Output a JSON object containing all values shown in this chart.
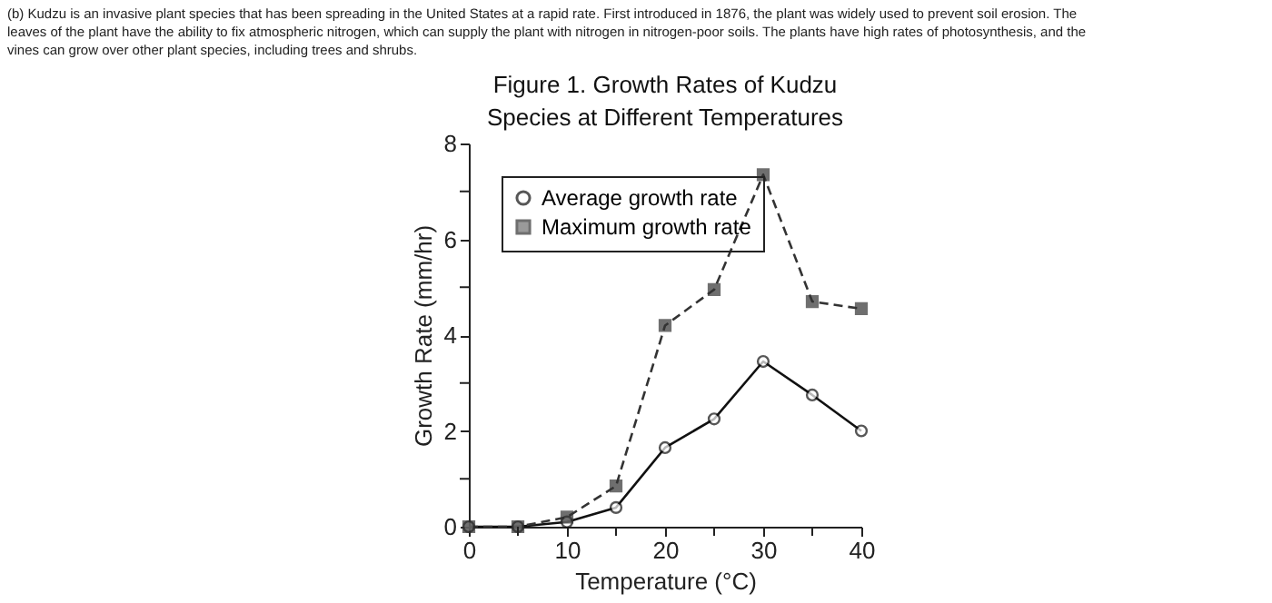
{
  "chart_data": {
    "type": "line",
    "title": [
      "Figure 1. Growth Rates of Kudzu",
      "Species at Different Temperatures"
    ],
    "annotations": [
      "(b) Kudzu is an invasive plant species that has been spreading in the United States at a rapid rate. First introduced in 1876, the plant was widely used to prevent soil erosion. The leaves of the plant have the ability to fix atmospheric nitrogen, which can supply the plant with nitrogen in nitrogen-poor soils. The plants have high rates of photosynthesis, and the vines can grow over other plant species, including trees and shrubs."
    ],
    "xlabel": "Temperature (°C)",
    "ylabel": "Growth Rate (mm/hr)",
    "x": [
      0,
      5,
      10,
      15,
      20,
      25,
      30,
      35,
      40
    ],
    "series": [
      {
        "name": "Average growth rate",
        "color": "#111111",
        "marker": "circle",
        "line_style": "solid",
        "values": [
          0,
          0,
          0.1,
          0.4,
          1.65,
          2.25,
          3.45,
          2.75,
          2.0
        ]
      },
      {
        "name": "Maximum growth rate",
        "color": "#333333",
        "marker": "square",
        "line_style": "dashed",
        "values": [
          0,
          0,
          0.2,
          0.85,
          4.2,
          4.95,
          7.35,
          4.7,
          4.55
        ]
      }
    ],
    "xlim": [
      0,
      40
    ],
    "xticks": [
      0,
      {
        "value": 5,
        "label": null
      },
      10,
      {
        "value": 15,
        "label": null
      },
      20,
      {
        "value": 25,
        "label": null
      },
      30,
      {
        "value": 35,
        "label": null
      },
      40
    ],
    "ylim": [
      0,
      8
    ],
    "yticks": [
      0,
      {
        "value": 1,
        "label": null
      },
      2,
      {
        "value": 3,
        "label": null
      },
      4,
      {
        "value": 5,
        "label": null
      },
      6,
      {
        "value": 7,
        "label": null
      },
      8
    ],
    "grid": false,
    "legend": "top left"
  }
}
